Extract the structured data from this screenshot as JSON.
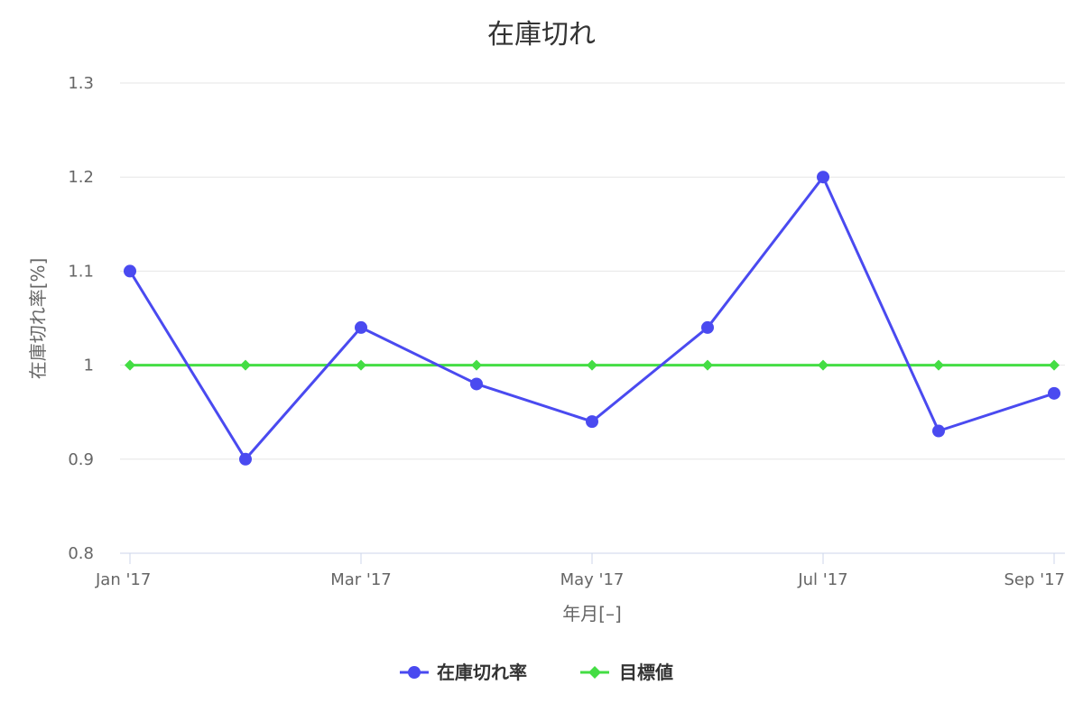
{
  "chart_data": {
    "type": "line",
    "title": "在庫切れ",
    "xlabel": "年月[–]",
    "ylabel": "在庫切れ率[%]",
    "ylim": [
      0.8,
      1.3
    ],
    "yticks": [
      "0.8",
      "0.9",
      "1",
      "1.1",
      "1.2",
      "1.3"
    ],
    "grid": true,
    "legend_position": "bottom",
    "x_tick_labels": [
      "Jan '17",
      "Mar '17",
      "May '17",
      "Jul '17",
      "Sep '17"
    ],
    "x": [
      "2017-01",
      "2017-02",
      "2017-03",
      "2017-04",
      "2017-05",
      "2017-06",
      "2017-07",
      "2017-08",
      "2017-09"
    ],
    "series": [
      {
        "name": "在庫切れ率",
        "marker": "circle",
        "color": "#4a4af0",
        "values": [
          1.1,
          0.9,
          1.04,
          0.98,
          0.94,
          1.04,
          1.2,
          0.93,
          0.97
        ]
      },
      {
        "name": "目標値",
        "marker": "diamond",
        "color": "#44dd44",
        "values": [
          1,
          1,
          1,
          1,
          1,
          1,
          1,
          1,
          1
        ]
      }
    ]
  }
}
